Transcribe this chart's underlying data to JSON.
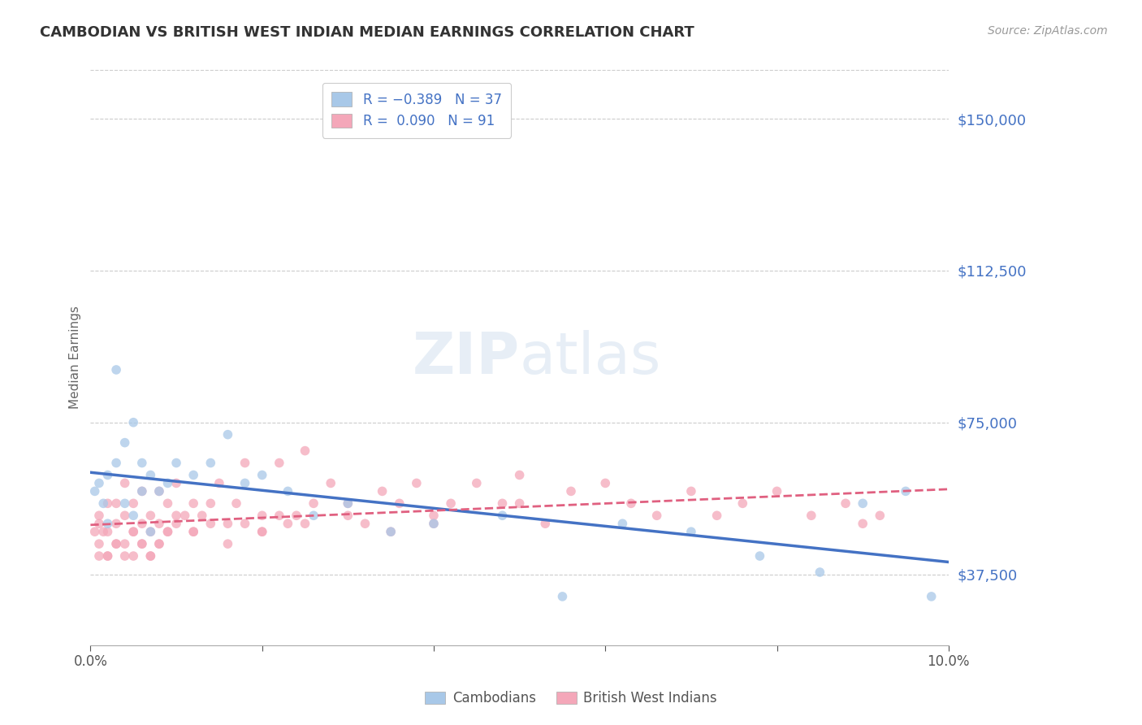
{
  "title": "CAMBODIAN VS BRITISH WEST INDIAN MEDIAN EARNINGS CORRELATION CHART",
  "source": "Source: ZipAtlas.com",
  "ylabel": "Median Earnings",
  "xlim": [
    0.0,
    0.1
  ],
  "ylim": [
    20000,
    162000
  ],
  "yticks": [
    37500,
    75000,
    112500,
    150000
  ],
  "ytick_labels": [
    "$37,500",
    "$75,000",
    "$112,500",
    "$150,000"
  ],
  "xticks": [
    0.0,
    0.02,
    0.04,
    0.06,
    0.08,
    0.1
  ],
  "xtick_labels": [
    "0.0%",
    "",
    "",
    "",
    "",
    "10.0%"
  ],
  "background_color": "#ffffff",
  "grid_color": "#cccccc",
  "title_color": "#333333",
  "axis_label_color": "#4472c4",
  "watermark_line1": "ZIP",
  "watermark_line2": "atlas",
  "cambodian_dot_color": "#a8c8e8",
  "bwi_dot_color": "#f4a7b9",
  "trend_cambodian_color": "#4472c4",
  "trend_bwi_color": "#e06080",
  "scatter_alpha": 0.75,
  "dot_size": 70,
  "cambodian_points_x": [
    0.0005,
    0.001,
    0.0015,
    0.002,
    0.002,
    0.003,
    0.003,
    0.004,
    0.004,
    0.005,
    0.005,
    0.006,
    0.006,
    0.007,
    0.007,
    0.008,
    0.009,
    0.01,
    0.012,
    0.014,
    0.016,
    0.018,
    0.02,
    0.023,
    0.026,
    0.03,
    0.035,
    0.04,
    0.048,
    0.055,
    0.062,
    0.07,
    0.078,
    0.085,
    0.09,
    0.095,
    0.098
  ],
  "cambodian_points_y": [
    58000,
    60000,
    55000,
    62000,
    50000,
    88000,
    65000,
    70000,
    55000,
    75000,
    52000,
    65000,
    58000,
    62000,
    48000,
    58000,
    60000,
    65000,
    62000,
    65000,
    72000,
    60000,
    62000,
    58000,
    52000,
    55000,
    48000,
    50000,
    52000,
    32000,
    50000,
    48000,
    42000,
    38000,
    55000,
    58000,
    32000
  ],
  "bwi_points_x": [
    0.0005,
    0.001,
    0.001,
    0.001,
    0.0015,
    0.002,
    0.002,
    0.002,
    0.003,
    0.003,
    0.003,
    0.004,
    0.004,
    0.004,
    0.005,
    0.005,
    0.005,
    0.006,
    0.006,
    0.006,
    0.007,
    0.007,
    0.007,
    0.008,
    0.008,
    0.008,
    0.009,
    0.009,
    0.01,
    0.01,
    0.011,
    0.012,
    0.012,
    0.013,
    0.014,
    0.015,
    0.016,
    0.017,
    0.018,
    0.02,
    0.02,
    0.022,
    0.023,
    0.024,
    0.025,
    0.026,
    0.028,
    0.03,
    0.032,
    0.034,
    0.036,
    0.038,
    0.04,
    0.042,
    0.045,
    0.048,
    0.05,
    0.053,
    0.056,
    0.06,
    0.063,
    0.066,
    0.07,
    0.073,
    0.076,
    0.08,
    0.084,
    0.088,
    0.09,
    0.092,
    0.001,
    0.002,
    0.003,
    0.004,
    0.005,
    0.006,
    0.007,
    0.008,
    0.009,
    0.01,
    0.012,
    0.014,
    0.016,
    0.018,
    0.02,
    0.022,
    0.025,
    0.03,
    0.035,
    0.04,
    0.05
  ],
  "bwi_points_y": [
    48000,
    50000,
    45000,
    52000,
    48000,
    55000,
    48000,
    42000,
    55000,
    50000,
    45000,
    60000,
    52000,
    45000,
    55000,
    48000,
    42000,
    58000,
    50000,
    45000,
    52000,
    48000,
    42000,
    58000,
    50000,
    45000,
    55000,
    48000,
    60000,
    50000,
    52000,
    55000,
    48000,
    52000,
    55000,
    60000,
    50000,
    55000,
    65000,
    52000,
    48000,
    65000,
    50000,
    52000,
    68000,
    55000,
    60000,
    55000,
    50000,
    58000,
    55000,
    60000,
    52000,
    55000,
    60000,
    55000,
    62000,
    50000,
    58000,
    60000,
    55000,
    52000,
    58000,
    52000,
    55000,
    58000,
    52000,
    55000,
    50000,
    52000,
    42000,
    42000,
    45000,
    42000,
    48000,
    45000,
    42000,
    45000,
    48000,
    52000,
    48000,
    50000,
    45000,
    50000,
    48000,
    52000,
    50000,
    52000,
    48000,
    50000,
    55000
  ]
}
